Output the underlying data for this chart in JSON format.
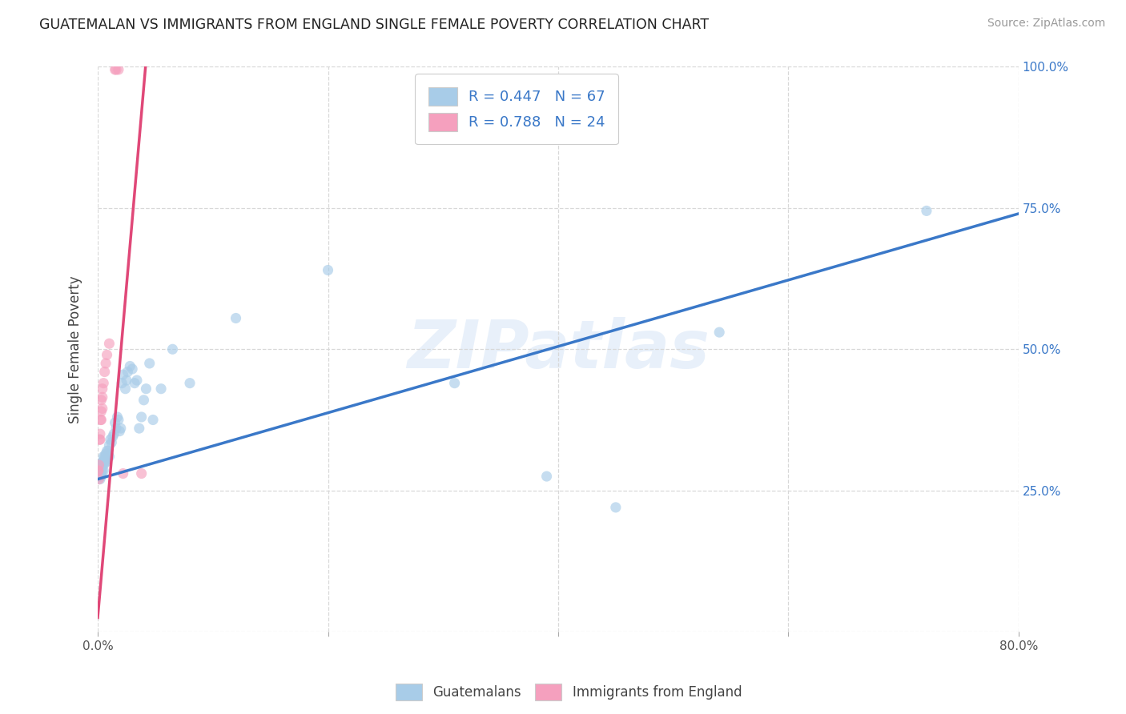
{
  "title": "GUATEMALAN VS IMMIGRANTS FROM ENGLAND SINGLE FEMALE POVERTY CORRELATION CHART",
  "source": "Source: ZipAtlas.com",
  "ylabel": "Single Female Poverty",
  "watermark": "ZIPatlas",
  "xlim": [
    0.0,
    0.8
  ],
  "ylim": [
    0.0,
    1.0
  ],
  "blue_color": "#a8cce8",
  "blue_line_color": "#3a78c8",
  "pink_color": "#f5a0be",
  "pink_line_color": "#e04878",
  "blue_scatter_alpha": 0.65,
  "pink_scatter_alpha": 0.65,
  "dot_size": 90,
  "legend_r1": "R = 0.447   N = 67",
  "legend_r2": "R = 0.788   N = 24",
  "legend_label1": "Guatemalans",
  "legend_label2": "Immigrants from England",
  "blue_x": [
    0.0005,
    0.001,
    0.001,
    0.0015,
    0.002,
    0.002,
    0.002,
    0.0025,
    0.003,
    0.003,
    0.003,
    0.003,
    0.004,
    0.004,
    0.004,
    0.004,
    0.005,
    0.005,
    0.005,
    0.005,
    0.006,
    0.006,
    0.006,
    0.007,
    0.007,
    0.007,
    0.008,
    0.008,
    0.009,
    0.009,
    0.01,
    0.01,
    0.011,
    0.012,
    0.013,
    0.014,
    0.015,
    0.016,
    0.017,
    0.018,
    0.019,
    0.02,
    0.021,
    0.022,
    0.024,
    0.025,
    0.026,
    0.028,
    0.03,
    0.032,
    0.034,
    0.036,
    0.038,
    0.04,
    0.042,
    0.045,
    0.048,
    0.055,
    0.065,
    0.08,
    0.12,
    0.2,
    0.31,
    0.39,
    0.45,
    0.54,
    0.72
  ],
  "blue_y": [
    0.285,
    0.275,
    0.28,
    0.285,
    0.28,
    0.29,
    0.27,
    0.285,
    0.285,
    0.29,
    0.28,
    0.275,
    0.3,
    0.295,
    0.285,
    0.3,
    0.295,
    0.3,
    0.31,
    0.285,
    0.3,
    0.31,
    0.305,
    0.315,
    0.3,
    0.31,
    0.32,
    0.305,
    0.32,
    0.315,
    0.33,
    0.31,
    0.34,
    0.335,
    0.345,
    0.35,
    0.37,
    0.36,
    0.38,
    0.375,
    0.355,
    0.36,
    0.44,
    0.455,
    0.43,
    0.445,
    0.46,
    0.47,
    0.465,
    0.44,
    0.445,
    0.36,
    0.38,
    0.41,
    0.43,
    0.475,
    0.375,
    0.43,
    0.5,
    0.44,
    0.555,
    0.64,
    0.44,
    0.275,
    0.22,
    0.53,
    0.745
  ],
  "pink_x": [
    0.0003,
    0.0005,
    0.001,
    0.001,
    0.0015,
    0.002,
    0.002,
    0.0025,
    0.003,
    0.003,
    0.003,
    0.004,
    0.004,
    0.004,
    0.005,
    0.006,
    0.007,
    0.008,
    0.01,
    0.015,
    0.016,
    0.018,
    0.022,
    0.038
  ],
  "pink_y": [
    0.285,
    0.285,
    0.295,
    0.27,
    0.34,
    0.34,
    0.35,
    0.375,
    0.375,
    0.39,
    0.41,
    0.415,
    0.395,
    0.43,
    0.44,
    0.46,
    0.475,
    0.49,
    0.51,
    0.995,
    0.995,
    0.995,
    0.28,
    0.28
  ],
  "blue_line_x": [
    0.0,
    0.8
  ],
  "blue_line_y": [
    0.27,
    0.74
  ],
  "pink_line_x": [
    0.0,
    0.0415
  ],
  "pink_line_y": [
    0.025,
    1.0
  ]
}
